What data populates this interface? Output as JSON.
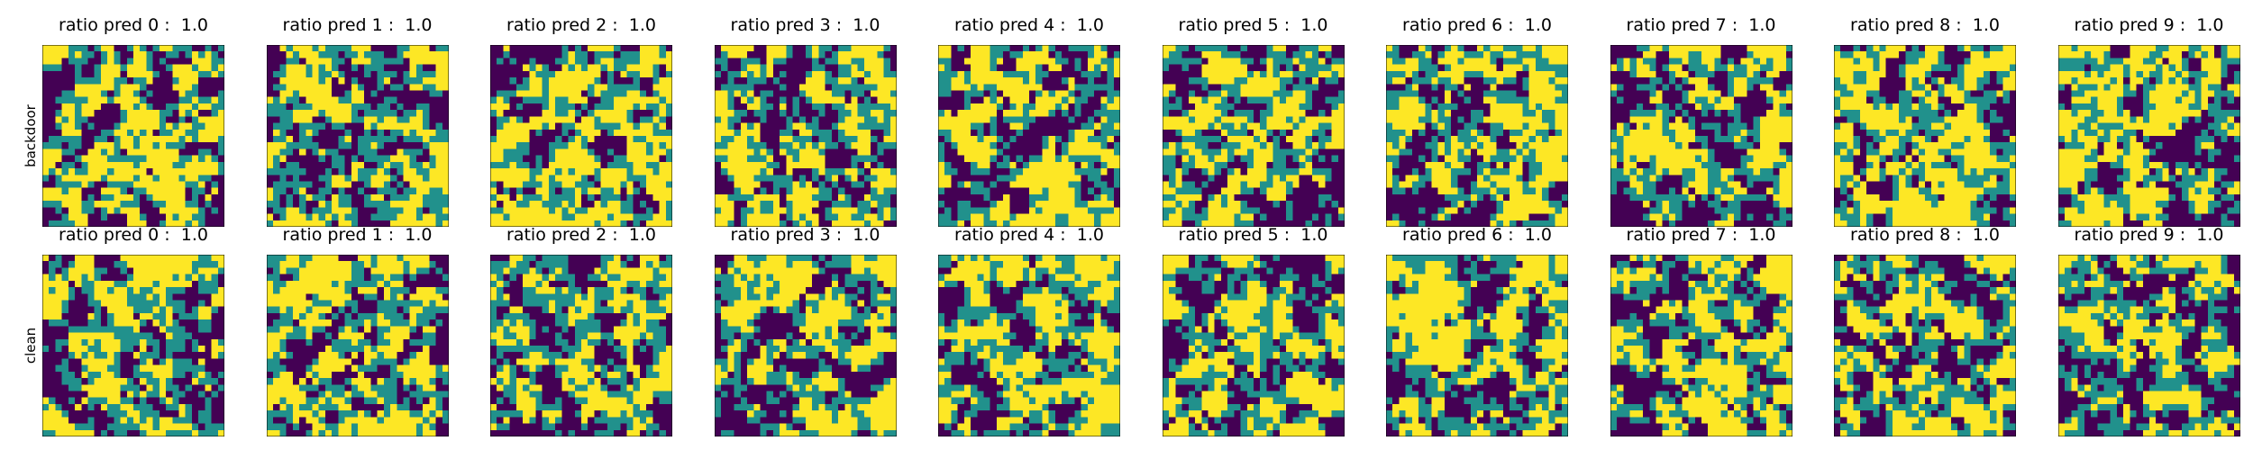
{
  "chart_data": {
    "type": "heatmap",
    "colormap": "viridis",
    "levels": [
      0,
      0.5,
      1
    ],
    "colors": {
      "low": "#440154",
      "mid": "#21918c",
      "high": "#fde725"
    },
    "grid": false,
    "rows": [
      {
        "label": "backdoor",
        "panels": [
          {
            "title": "ratio pred 0 :  1.0"
          },
          {
            "title": "ratio pred 1 :  1.0"
          },
          {
            "title": "ratio pred 2 :  1.0"
          },
          {
            "title": "ratio pred 3 :  1.0"
          },
          {
            "title": "ratio pred 4 :  1.0"
          },
          {
            "title": "ratio pred 5 :  1.0"
          },
          {
            "title": "ratio pred 6 :  1.0"
          },
          {
            "title": "ratio pred 7 :  1.0"
          },
          {
            "title": "ratio pred 8 :  1.0"
          },
          {
            "title": "ratio pred 9 :  1.0"
          }
        ]
      },
      {
        "label": "clean",
        "panels": [
          {
            "title": "ratio pred 0 :  1.0"
          },
          {
            "title": "ratio pred 1 :  1.0"
          },
          {
            "title": "ratio pred 2 :  1.0"
          },
          {
            "title": "ratio pred 3 :  1.0"
          },
          {
            "title": "ratio pred 4 :  1.0"
          },
          {
            "title": "ratio pred 5 :  1.0"
          },
          {
            "title": "ratio pred 6 :  1.0"
          },
          {
            "title": "ratio pred 7 :  1.0"
          },
          {
            "title": "ratio pred 8 :  1.0"
          },
          {
            "title": "ratio pred 9 :  1.0"
          }
        ]
      }
    ]
  }
}
